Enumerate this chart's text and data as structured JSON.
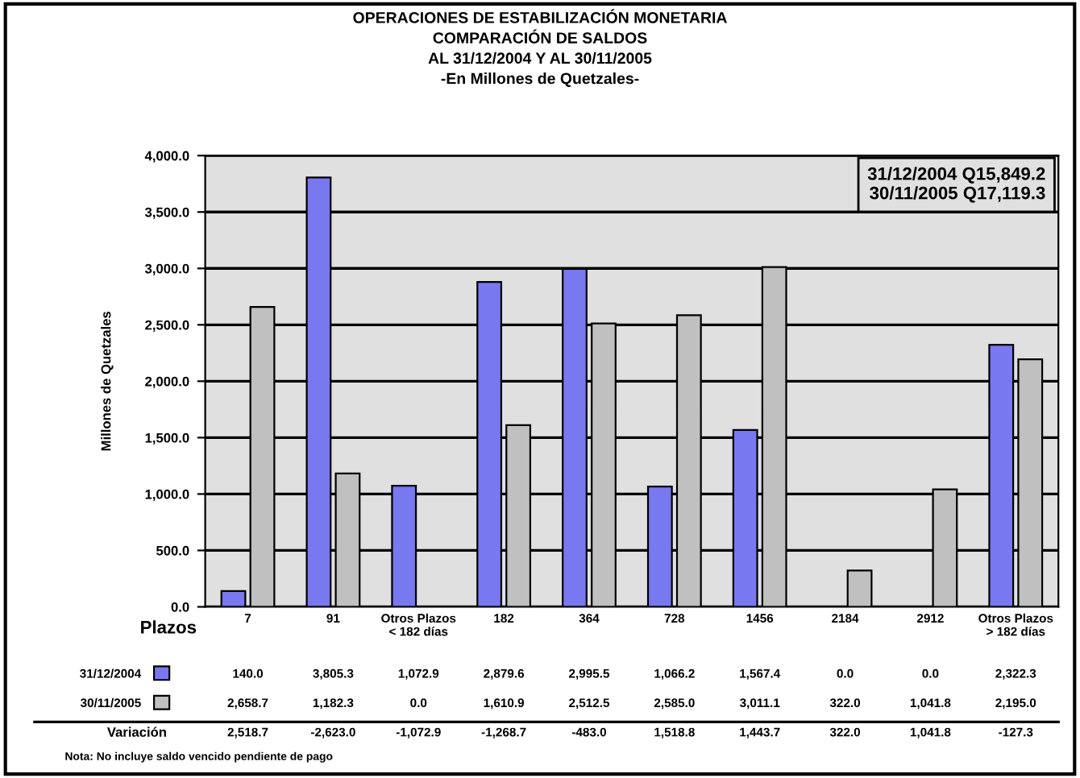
{
  "chart_data": {
    "type": "bar",
    "title": "OPERACIONES DE ESTABILIZACIÓN MONETARIA\nCOMPARACIÓN DE SALDOS\nAL 31/12/2004 Y AL 30/11/2005\n-En Millones de Quetzales-",
    "xlabel": "Plazos",
    "ylabel": "Millones de Quetzales",
    "categories": [
      "7",
      "91",
      "Otros Plazos\n< 182 días",
      "182",
      "364",
      "728",
      "1456",
      "2184",
      "2912",
      "Otros Plazos\n> 182 días"
    ],
    "series": [
      {
        "name": "31/12/2004",
        "color": "#7878f0",
        "values": [
          140.0,
          3805.3,
          1072.9,
          2879.6,
          2995.5,
          1066.2,
          1567.4,
          0.0,
          0.0,
          2322.3
        ],
        "value_labels": [
          "140.0",
          "3,805.3",
          "1,072.9",
          "2,879.6",
          "2,995.5",
          "1,066.2",
          "1,567.4",
          "0.0",
          "0.0",
          "2,322.3"
        ]
      },
      {
        "name": "30/11/2005",
        "color": "#c0c0c0",
        "values": [
          2658.7,
          1182.3,
          0.0,
          1610.9,
          2512.5,
          2585.0,
          3011.1,
          322.0,
          1041.8,
          2195.0
        ],
        "value_labels": [
          "2,658.7",
          "1,182.3",
          "0.0",
          "1,610.9",
          "2,512.5",
          "2,585.0",
          "3,011.1",
          "322.0",
          "1,041.8",
          "2,195.0"
        ]
      }
    ],
    "ylim": [
      0,
      4000
    ],
    "yticks": [
      {
        "value": 0,
        "label": "0.0"
      },
      {
        "value": 500,
        "label": "500.0"
      },
      {
        "value": 1000,
        "label": "1,000.0"
      },
      {
        "value": 1500,
        "label": "1,500.0"
      },
      {
        "value": 2000,
        "label": "2,000.0"
      },
      {
        "value": 2500,
        "label": "2,500.0"
      },
      {
        "value": 3000,
        "label": "3,000.0"
      },
      {
        "value": 3500,
        "label": "3,500.0"
      },
      {
        "value": 4000,
        "label": "4,000.0"
      }
    ],
    "grid": "y",
    "legend": "bottom left",
    "annotations": [
      "31/12/2004 Q15,849.2\n30/11/2005 Q17,119.3",
      "Variación",
      "2,518.7",
      "-2,623.0",
      "-1,072.9",
      "-1,268.7",
      "-483.0",
      "1,518.8",
      "1,443.7",
      "322.0",
      "1,041.8",
      "-127.3",
      "Nota: No incluye saldo vencido pendiente de pago"
    ]
  }
}
